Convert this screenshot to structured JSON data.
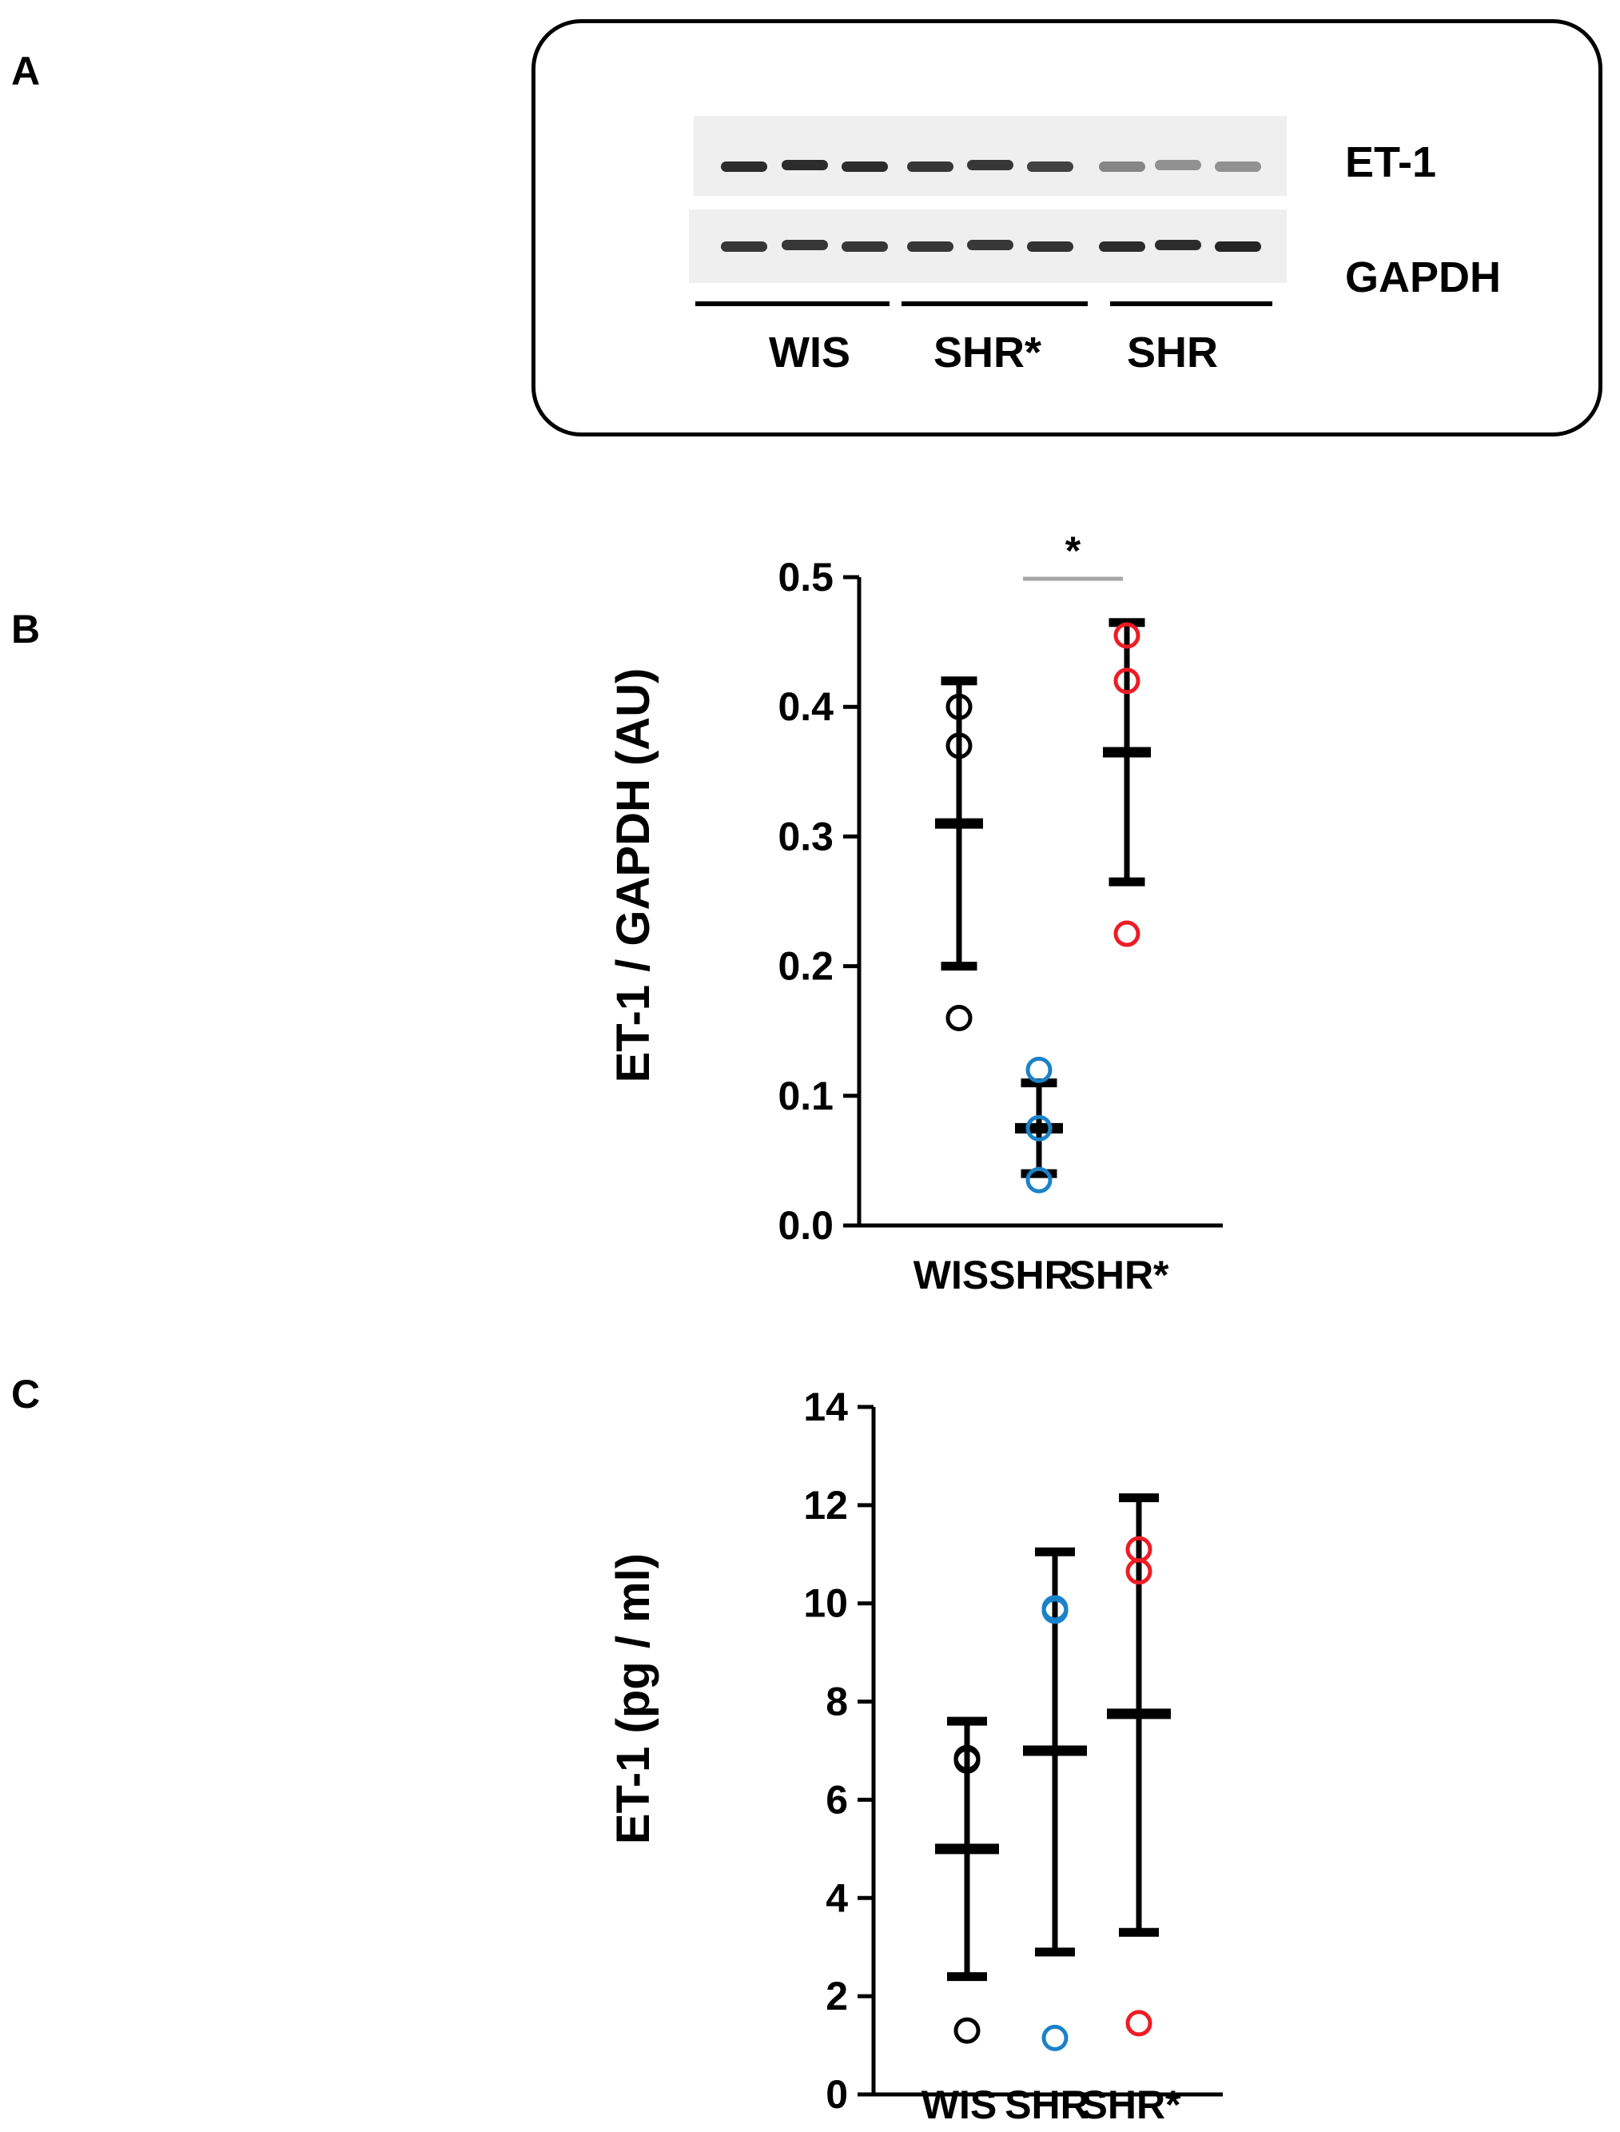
{
  "panels": {
    "a": "A",
    "b": "B",
    "c": "C"
  },
  "blot": {
    "rows": [
      {
        "label": "ET-1",
        "intensity": [
          0.85,
          0.85,
          0.85,
          0.8,
          0.8,
          0.75,
          0.45,
          0.4,
          0.4
        ]
      },
      {
        "label": "GAPDH",
        "intensity": [
          0.8,
          0.8,
          0.8,
          0.8,
          0.8,
          0.82,
          0.85,
          0.85,
          0.88
        ]
      }
    ],
    "groups": [
      "WIS",
      "SHR*",
      "SHR"
    ]
  },
  "colors": {
    "WIS": "#000000",
    "SHR": "#1a82c8",
    "SHR*": "#ee1c24",
    "sig_bar": "#a6a6a6"
  },
  "chart_data": [
    {
      "type": "scatter",
      "panel": "B",
      "title": "",
      "xlabel": "",
      "ylabel": "ET-1 / GAPDH (AU)",
      "ylim": [
        0.0,
        0.5
      ],
      "yticks": [
        "0.0",
        "0.1",
        "0.2",
        "0.3",
        "0.4",
        "0.5"
      ],
      "categories": [
        "WIS",
        "SHR",
        "SHR*"
      ],
      "series": [
        {
          "name": "WIS",
          "points": [
            0.16,
            0.37,
            0.4
          ],
          "mean": 0.31,
          "sd_low": 0.2,
          "sd_high": 0.42
        },
        {
          "name": "SHR",
          "points": [
            0.035,
            0.075,
            0.12
          ],
          "mean": 0.075,
          "sd_low": 0.04,
          "sd_high": 0.11
        },
        {
          "name": "SHR*",
          "points": [
            0.225,
            0.42,
            0.455
          ],
          "mean": 0.365,
          "sd_low": 0.265,
          "sd_high": 0.465
        }
      ],
      "significance": {
        "between": [
          "SHR",
          "SHR*"
        ],
        "label": "*"
      }
    },
    {
      "type": "scatter",
      "panel": "C",
      "title": "",
      "xlabel": "",
      "ylabel": "ET-1 (pg / ml)",
      "ylim": [
        0,
        14
      ],
      "yticks": [
        "0",
        "2",
        "4",
        "6",
        "8",
        "10",
        "12",
        "14"
      ],
      "categories": [
        "WIS",
        "SHR",
        "SHR*"
      ],
      "series": [
        {
          "name": "WIS",
          "points": [
            1.3,
            6.8,
            6.85
          ],
          "mean": 5.0,
          "sd_low": 2.4,
          "sd_high": 7.6
        },
        {
          "name": "SHR",
          "points": [
            1.15,
            9.85,
            9.9
          ],
          "mean": 7.0,
          "sd_low": 2.9,
          "sd_high": 11.05
        },
        {
          "name": "SHR*",
          "points": [
            1.45,
            10.65,
            11.1
          ],
          "mean": 7.75,
          "sd_low": 3.3,
          "sd_high": 12.15
        }
      ]
    }
  ]
}
